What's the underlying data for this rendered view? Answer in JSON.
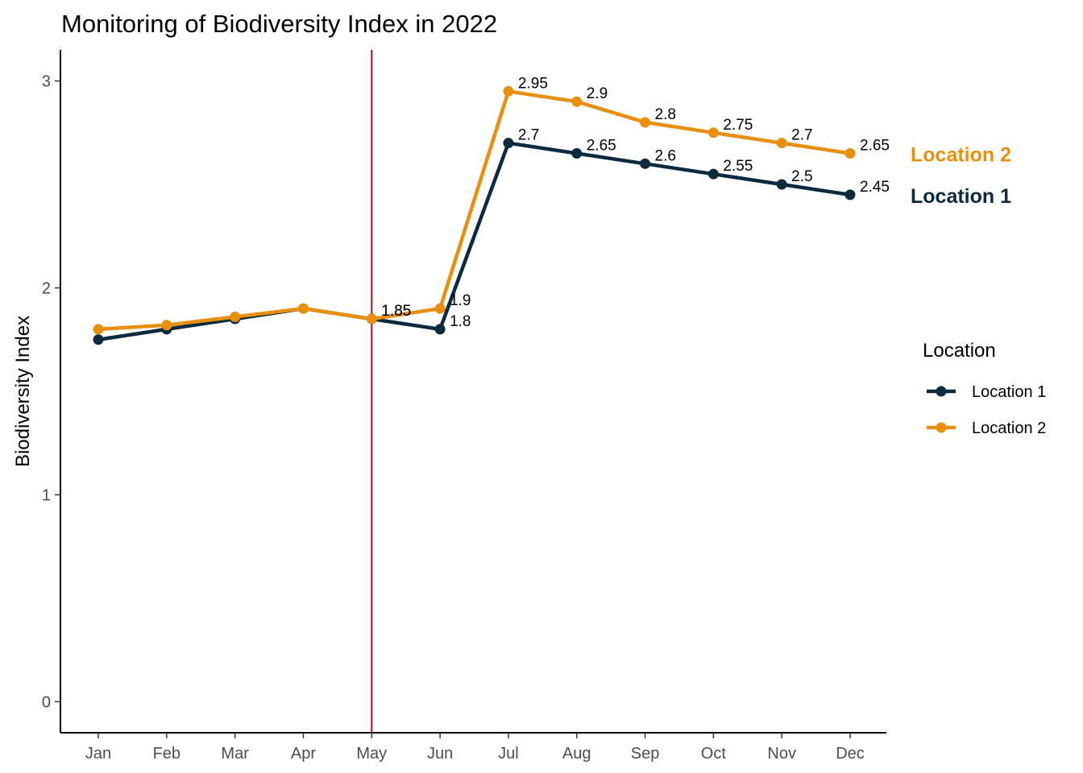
{
  "chart_data": {
    "type": "line",
    "title": "Monitoring of Biodiversity Index in 2022",
    "xlabel": "",
    "ylabel": "Biodiversity Index",
    "categories": [
      "Jan",
      "Feb",
      "Mar",
      "Apr",
      "May",
      "Jun",
      "Jul",
      "Aug",
      "Sep",
      "Oct",
      "Nov",
      "Dec"
    ],
    "y_ticks": [
      "0",
      "1",
      "2",
      "3"
    ],
    "ylim": [
      -0.15,
      3.15
    ],
    "grid": false,
    "vline": {
      "category": "May",
      "color": "#9b1b1b"
    },
    "series": [
      {
        "name": "Location 1",
        "color": "#0b2a3d",
        "values": [
          1.75,
          1.8,
          1.85,
          1.9,
          1.85,
          1.8,
          2.7,
          2.65,
          2.6,
          2.55,
          2.5,
          2.45
        ],
        "labels": [
          "",
          "",
          "",
          "",
          "1.85",
          "1.8",
          "2.7",
          "2.65",
          "2.6",
          "2.55",
          "2.5",
          "2.45"
        ],
        "end_label": "Location 1"
      },
      {
        "name": "Location 2",
        "color": "#e8900e",
        "values": [
          1.8,
          1.82,
          1.86,
          1.9,
          1.85,
          1.9,
          2.95,
          2.9,
          2.8,
          2.75,
          2.7,
          2.65
        ],
        "labels": [
          "",
          "",
          "",
          "",
          "1.85",
          "1.9",
          "2.95",
          "2.9",
          "2.8",
          "2.75",
          "2.7",
          "2.65"
        ],
        "end_label": "Location 2"
      }
    ],
    "legend": {
      "title": "Location",
      "position": "right"
    }
  }
}
